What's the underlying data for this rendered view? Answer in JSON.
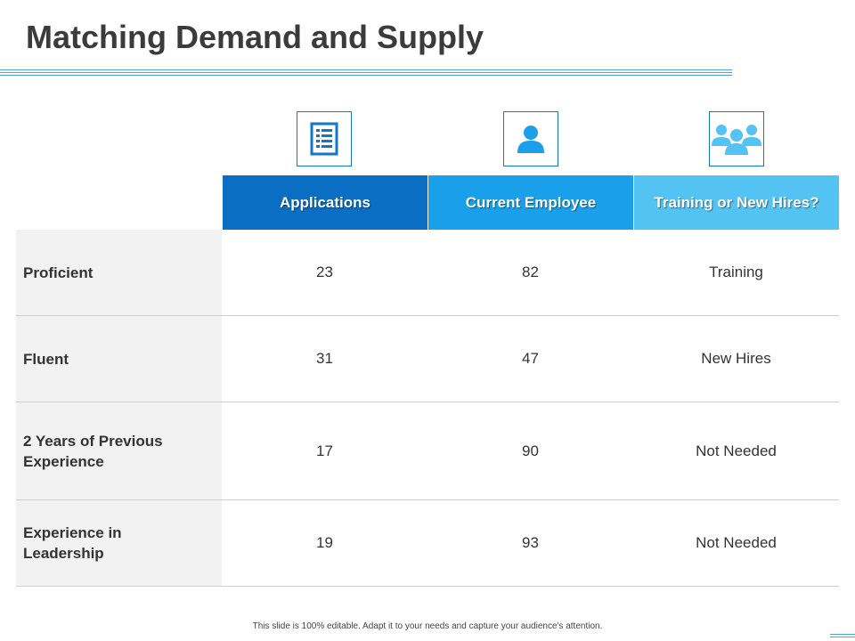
{
  "title": "Matching Demand and Supply",
  "icons": [
    "list-document-icon",
    "person-icon",
    "group-icon"
  ],
  "colors": {
    "accent_dark": "#0a6fc2",
    "accent_mid": "#1aa0ea",
    "accent_light": "#52c3f3",
    "row_label_bg": "#f2f2f2"
  },
  "table": {
    "headers": [
      "Applications",
      "Current Employee",
      "Training or New Hires?"
    ],
    "rows": [
      {
        "label": "Proficient",
        "applications": "23",
        "current": "82",
        "decision": "Training"
      },
      {
        "label": "Fluent",
        "applications": "31",
        "current": "47",
        "decision": "New Hires"
      },
      {
        "label": "2 Years of Previous Experience",
        "applications": "17",
        "current": "90",
        "decision": "Not Needed"
      },
      {
        "label": "Experience in Leadership",
        "applications": "19",
        "current": "93",
        "decision": "Not Needed"
      }
    ]
  },
  "footer": "This slide is 100% editable. Adapt it to your needs and capture your audience's attention."
}
